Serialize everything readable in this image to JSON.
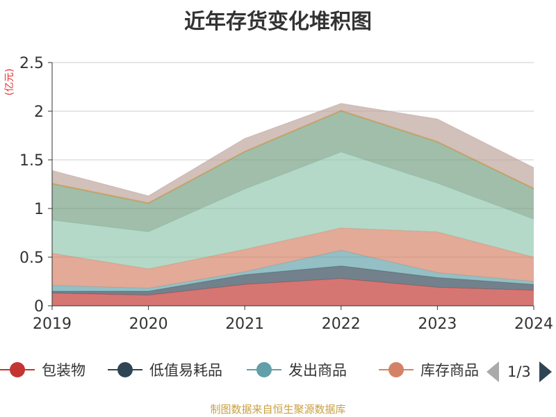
{
  "title": "近年存货变化堆积图",
  "source": "制图数据来自恒生聚源数据库",
  "pager": {
    "label": "1/3"
  },
  "chart_data": {
    "type": "area",
    "stacked": true,
    "ylabel": "(亿元)",
    "ylim": [
      0,
      2.5
    ],
    "yticks": [
      "0",
      "0.5",
      "1",
      "1.5",
      "2",
      "2.5"
    ],
    "grid": true,
    "legend_position": "bottom",
    "categories": [
      "2019",
      "2020",
      "2021",
      "2022",
      "2023",
      "2024"
    ],
    "series": [
      {
        "name": "包装物",
        "color": "#c23531",
        "values": [
          0.13,
          0.11,
          0.22,
          0.28,
          0.19,
          0.16
        ]
      },
      {
        "name": "低值易耗品",
        "color": "#2f4554",
        "values": [
          0.02,
          0.04,
          0.1,
          0.13,
          0.1,
          0.06
        ]
      },
      {
        "name": "发出商品",
        "color": "#61a0a8",
        "values": [
          0.06,
          0.03,
          0.03,
          0.16,
          0.05,
          0.03
        ]
      },
      {
        "name": "库存商品",
        "color": "#d48265",
        "values": [
          0.33,
          0.2,
          0.23,
          0.23,
          0.42,
          0.25
        ]
      },
      {
        "name": "",
        "color": "#91c7ae",
        "values": [
          0.34,
          0.38,
          0.62,
          0.78,
          0.5,
          0.39
        ]
      },
      {
        "name": "",
        "color": "#749f83",
        "values": [
          0.37,
          0.29,
          0.38,
          0.42,
          0.42,
          0.31
        ]
      },
      {
        "name": "",
        "color": "#ca8622",
        "values": [
          0.01,
          0.01,
          0.01,
          0.01,
          0.01,
          0.01
        ]
      },
      {
        "name": "",
        "color": "#bda29a",
        "values": [
          0.13,
          0.07,
          0.13,
          0.07,
          0.23,
          0.21
        ]
      }
    ],
    "legend_visible": [
      "包装物",
      "低值易耗品",
      "发出商品",
      "库存商品"
    ]
  }
}
